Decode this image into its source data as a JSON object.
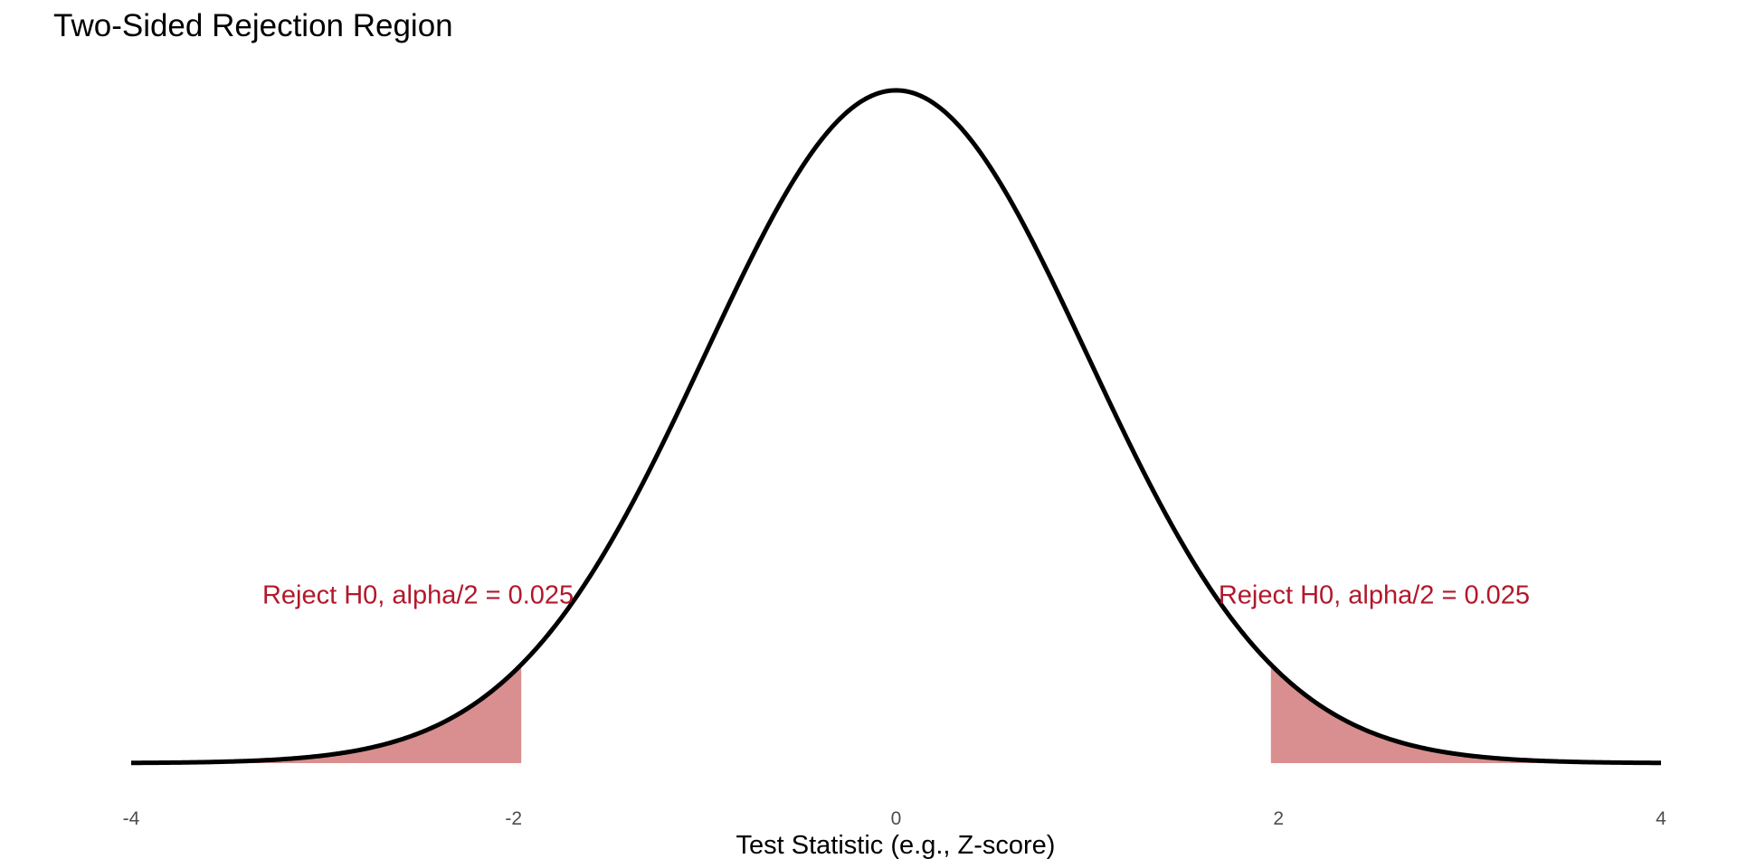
{
  "chart_data": {
    "type": "area",
    "title": "Two-Sided Rejection Region",
    "xlabel": "Test Statistic (e.g., Z-score)",
    "ylabel": "",
    "xlim": [
      -4,
      4
    ],
    "ylim": [
      0,
      0.3989
    ],
    "x_ticks": [
      -4,
      -2,
      0,
      2,
      4
    ],
    "x_tick_labels": [
      "-4",
      "-2",
      "0",
      "2",
      "4"
    ],
    "grid": false,
    "legend": "none",
    "series": [
      {
        "kind": "density_curve",
        "distribution": "standard normal",
        "x_range": [
          -4,
          4
        ],
        "color": "#000000"
      }
    ],
    "shaded_regions": [
      {
        "x_from": -4,
        "x_to": -1.96,
        "color": "#d98f8f"
      },
      {
        "x_from": 1.96,
        "x_to": 4,
        "color": "#d98f8f"
      }
    ],
    "annotations": [
      {
        "text": "Reject H0, alpha/2 = 0.025",
        "x": -2.5,
        "y": 0.1,
        "color": "#b2182b"
      },
      {
        "text": "Reject H0, alpha/2 = 0.025",
        "x": 2.5,
        "y": 0.1,
        "color": "#b2182b"
      }
    ]
  }
}
